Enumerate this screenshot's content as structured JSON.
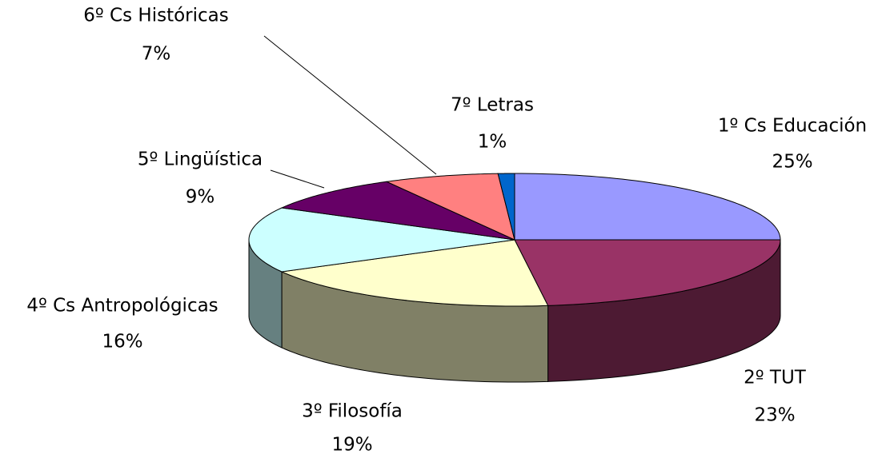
{
  "chart_data": {
    "type": "pie3d",
    "categories": [
      "1º Cs Educación",
      "2º TUT",
      "3º Filosofía",
      "4º Cs Antropológicas",
      "5º Lingüística",
      "6º Cs Históricas",
      "7º Letras"
    ],
    "values": [
      25,
      23,
      19,
      16,
      9,
      7,
      1
    ],
    "value_labels": [
      "25%",
      "23%",
      "19%",
      "16%",
      "9%",
      "7%",
      "1%"
    ],
    "colors": [
      "#9999ff",
      "#993366",
      "#ffffcc",
      "#ccffff",
      "#660066",
      "#ff8080",
      "#0066cc"
    ]
  }
}
